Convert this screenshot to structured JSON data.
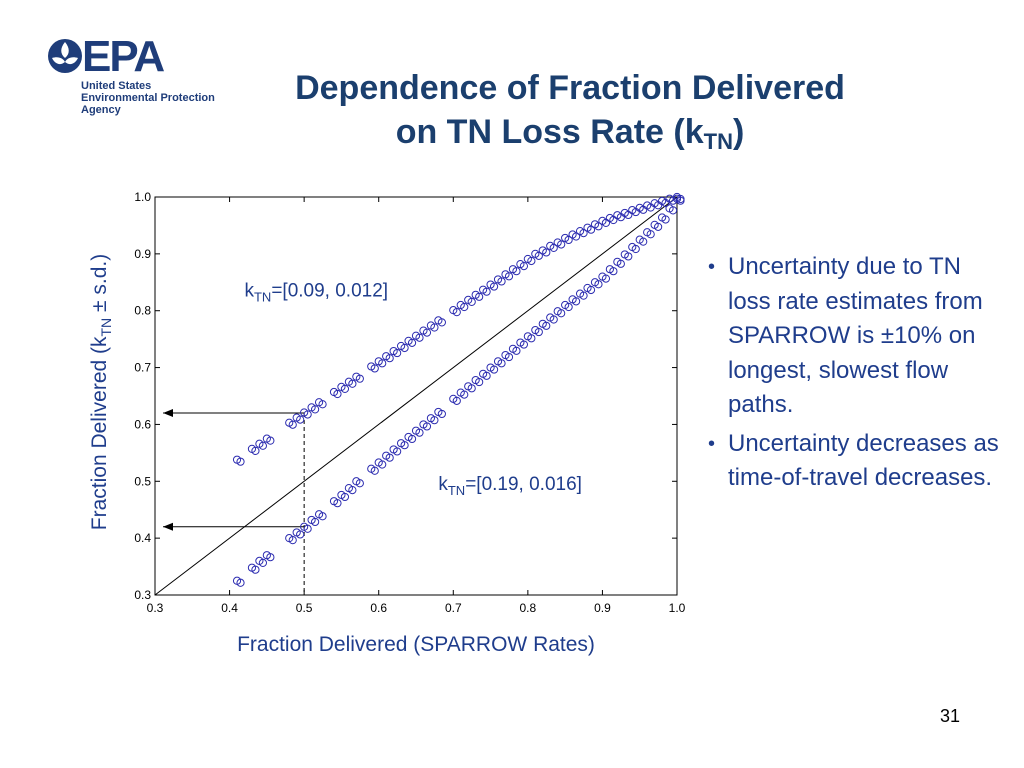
{
  "logo": {
    "wordmark": "EPA",
    "line1": "United States",
    "line2": "Environmental Protection",
    "line3": "Agency"
  },
  "title": {
    "line1": "Dependence of Fraction Delivered",
    "line2_prefix": "on TN Loss Rate (k",
    "line2_sub": "TN",
    "line2_suffix": ")"
  },
  "axes": {
    "xlabel": "Fraction Delivered (SPARROW Rates)",
    "ylabel_prefix": "Fraction Delivered (k",
    "ylabel_sub": "TN",
    "ylabel_suffix": " ± s.d.)"
  },
  "bullets": [
    "Uncertainty due to TN loss rate estimates from SPARROW is ±10% on longest, slowest flow paths.",
    "Uncertainty decreases as time-of-travel decreases."
  ],
  "page_number": "31",
  "colors": {
    "title": "#1b3f6e",
    "text": "#1f3d8c",
    "markers": "#2b2bb0",
    "logo": "#1f3d7a"
  },
  "chart_data": {
    "type": "scatter",
    "xlim": [
      0.3,
      1.0
    ],
    "ylim": [
      0.3,
      1.0
    ],
    "xticks": [
      "0.3",
      "0.4",
      "0.5",
      "0.6",
      "0.7",
      "0.8",
      "0.9",
      "1.0"
    ],
    "yticks": [
      "0.3",
      "0.4",
      "0.5",
      "0.6",
      "0.7",
      "0.8",
      "0.9",
      "1.0"
    ],
    "grid": false,
    "reference_line": {
      "x": [
        0.3,
        1.0
      ],
      "y": [
        0.3,
        1.0
      ]
    },
    "guide_x": 0.5,
    "arrows": [
      {
        "from": [
          0.5,
          0.62
        ],
        "to": [
          0.3,
          0.62
        ]
      },
      {
        "from": [
          0.5,
          0.42
        ],
        "to": [
          0.3,
          0.42
        ]
      }
    ],
    "annotations": [
      {
        "prefix": "k",
        "sub": "TN",
        "suffix": "=[0.09, 0.012]",
        "x": 0.42,
        "y": 0.825
      },
      {
        "prefix": "k",
        "sub": "TN",
        "suffix": "=[0.19, 0.016]",
        "x": 0.68,
        "y": 0.485
      }
    ],
    "series": [
      {
        "x": [
          0.41,
          0.43,
          0.44,
          0.45,
          0.48,
          0.49,
          0.5,
          0.51,
          0.52,
          0.54,
          0.55,
          0.56,
          0.57,
          0.59,
          0.6,
          0.61,
          0.62,
          0.63,
          0.64,
          0.65,
          0.66,
          0.67,
          0.68,
          0.7,
          0.71,
          0.72,
          0.73,
          0.74,
          0.75,
          0.76,
          0.77,
          0.78,
          0.79,
          0.8,
          0.81,
          0.82,
          0.83,
          0.84,
          0.85,
          0.86,
          0.87,
          0.88,
          0.89,
          0.9,
          0.91,
          0.92,
          0.93,
          0.94,
          0.95,
          0.96,
          0.97,
          0.98,
          0.99,
          1.0
        ],
        "y": [
          0.538,
          0.557,
          0.566,
          0.575,
          0.603,
          0.612,
          0.621,
          0.63,
          0.639,
          0.657,
          0.666,
          0.675,
          0.684,
          0.702,
          0.711,
          0.72,
          0.729,
          0.738,
          0.747,
          0.756,
          0.765,
          0.774,
          0.783,
          0.801,
          0.81,
          0.819,
          0.828,
          0.837,
          0.846,
          0.855,
          0.864,
          0.873,
          0.882,
          0.891,
          0.9,
          0.906,
          0.914,
          0.92,
          0.928,
          0.934,
          0.94,
          0.946,
          0.952,
          0.958,
          0.963,
          0.968,
          0.972,
          0.977,
          0.981,
          0.985,
          0.989,
          0.993,
          0.997,
          1.0
        ]
      },
      {
        "x": [
          0.41,
          0.43,
          0.44,
          0.45,
          0.48,
          0.49,
          0.5,
          0.51,
          0.52,
          0.54,
          0.55,
          0.56,
          0.57,
          0.59,
          0.6,
          0.61,
          0.62,
          0.63,
          0.64,
          0.65,
          0.66,
          0.67,
          0.68,
          0.7,
          0.71,
          0.72,
          0.73,
          0.74,
          0.75,
          0.76,
          0.77,
          0.78,
          0.79,
          0.8,
          0.81,
          0.82,
          0.83,
          0.84,
          0.85,
          0.86,
          0.87,
          0.88,
          0.89,
          0.9,
          0.91,
          0.92,
          0.93,
          0.94,
          0.95,
          0.96,
          0.97,
          0.98,
          0.99,
          1.0
        ],
        "y": [
          0.325,
          0.348,
          0.36,
          0.37,
          0.4,
          0.41,
          0.42,
          0.432,
          0.442,
          0.465,
          0.476,
          0.488,
          0.5,
          0.522,
          0.533,
          0.545,
          0.556,
          0.567,
          0.578,
          0.589,
          0.6,
          0.611,
          0.622,
          0.645,
          0.656,
          0.667,
          0.678,
          0.689,
          0.7,
          0.711,
          0.722,
          0.733,
          0.744,
          0.755,
          0.766,
          0.777,
          0.788,
          0.799,
          0.81,
          0.82,
          0.83,
          0.84,
          0.85,
          0.86,
          0.873,
          0.886,
          0.899,
          0.912,
          0.925,
          0.938,
          0.951,
          0.964,
          0.98,
          0.997
        ]
      }
    ]
  }
}
